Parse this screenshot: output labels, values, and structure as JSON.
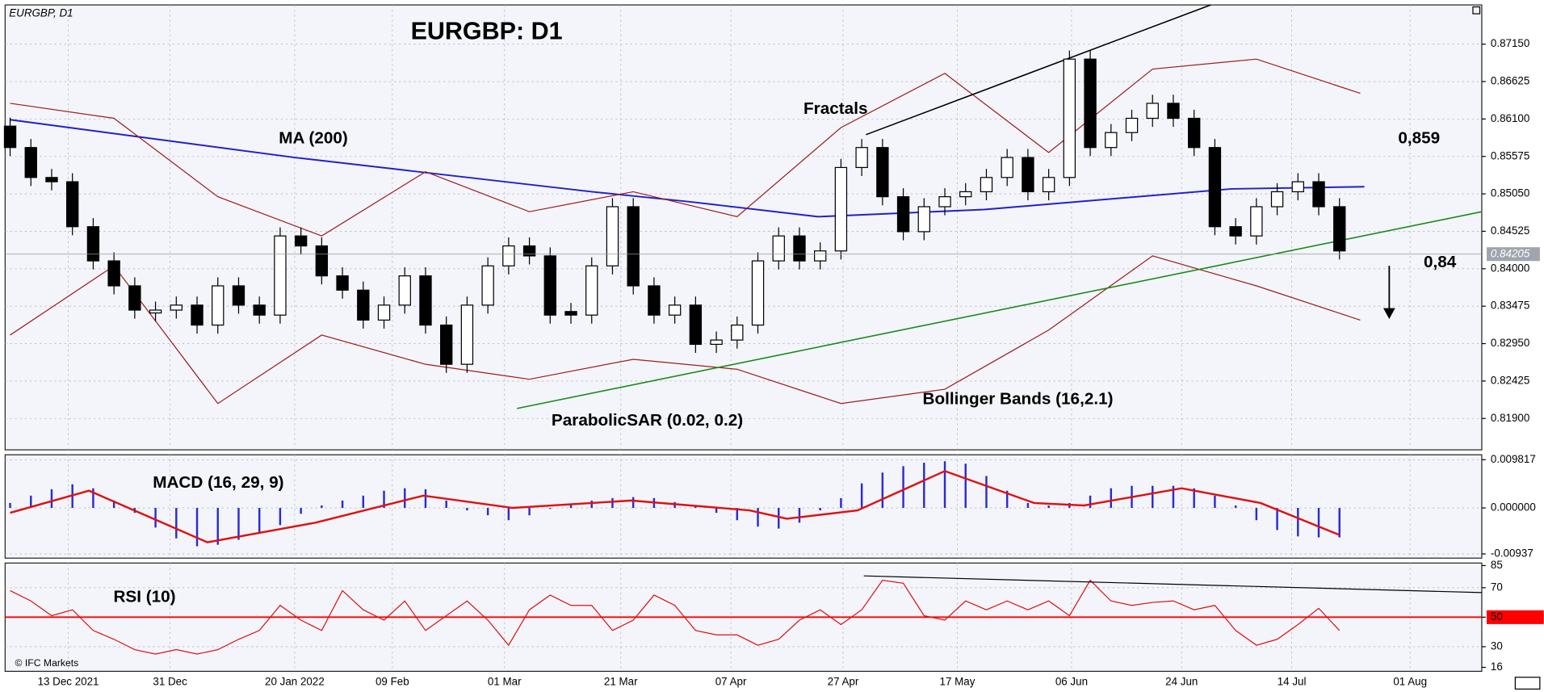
{
  "chart_data": [
    {
      "type": "candlestick",
      "title": "EURGBP: D1",
      "label": "EURGBP, D1",
      "footer": "© IFC Markets",
      "open": [
        0.86,
        0.857,
        0.8528,
        0.8522,
        0.8459,
        0.8411,
        0.8376,
        0.8338,
        0.8342,
        0.8349,
        0.8321,
        0.8376,
        0.8349,
        0.8335,
        0.8446,
        0.8432,
        0.839,
        0.837,
        0.8328,
        0.8349,
        0.839,
        0.8321,
        0.8266,
        0.8349,
        0.8404,
        0.8432,
        0.8418,
        0.834,
        0.8335,
        0.8404,
        0.8487,
        0.8376,
        0.8335,
        0.8349,
        0.8294,
        0.83,
        0.8321,
        0.8411,
        0.8446,
        0.8411,
        0.8425,
        0.8542,
        0.857,
        0.8501,
        0.8452,
        0.8487,
        0.8501,
        0.8508,
        0.8528,
        0.8556,
        0.8508,
        0.8528,
        0.8694,
        0.857,
        0.8591,
        0.8611,
        0.8632,
        0.8611,
        0.857,
        0.8459,
        0.8446,
        0.8487,
        0.8508,
        0.8522,
        0.8487
      ],
      "high": [
        0.8612,
        0.8582,
        0.854,
        0.8534,
        0.8471,
        0.8423,
        0.8388,
        0.8354,
        0.8361,
        0.8361,
        0.8388,
        0.8388,
        0.8361,
        0.8458,
        0.8458,
        0.8444,
        0.8402,
        0.8382,
        0.8361,
        0.8402,
        0.8402,
        0.8333,
        0.8361,
        0.8416,
        0.8444,
        0.8444,
        0.843,
        0.8352,
        0.8416,
        0.8499,
        0.8499,
        0.8388,
        0.8361,
        0.8361,
        0.8312,
        0.8333,
        0.8423,
        0.8458,
        0.8458,
        0.8437,
        0.8554,
        0.8582,
        0.8582,
        0.8513,
        0.8499,
        0.8513,
        0.852,
        0.854,
        0.8568,
        0.8568,
        0.854,
        0.8706,
        0.8706,
        0.8603,
        0.8623,
        0.8644,
        0.8644,
        0.8623,
        0.8582,
        0.8471,
        0.8499,
        0.852,
        0.8534,
        0.8534,
        0.8499
      ],
      "low": [
        0.8558,
        0.8516,
        0.851,
        0.8447,
        0.8399,
        0.8364,
        0.833,
        0.8326,
        0.833,
        0.8309,
        0.8309,
        0.8337,
        0.8323,
        0.8323,
        0.842,
        0.8378,
        0.8358,
        0.8316,
        0.8316,
        0.8337,
        0.8309,
        0.8254,
        0.8254,
        0.8337,
        0.8392,
        0.8406,
        0.8323,
        0.8323,
        0.8323,
        0.8392,
        0.8364,
        0.8323,
        0.8323,
        0.8282,
        0.8282,
        0.8288,
        0.8309,
        0.8399,
        0.8399,
        0.8399,
        0.8413,
        0.853,
        0.8489,
        0.844,
        0.844,
        0.8475,
        0.8489,
        0.8496,
        0.8516,
        0.8496,
        0.8496,
        0.8516,
        0.8558,
        0.8558,
        0.8579,
        0.8599,
        0.8599,
        0.8558,
        0.8447,
        0.8434,
        0.8434,
        0.8475,
        0.8496,
        0.8475,
        0.8413
      ],
      "close": [
        0.857,
        0.8528,
        0.8522,
        0.8459,
        0.8411,
        0.8376,
        0.8342,
        0.8342,
        0.8349,
        0.8321,
        0.8376,
        0.8349,
        0.8335,
        0.8446,
        0.8432,
        0.839,
        0.837,
        0.8328,
        0.8349,
        0.839,
        0.8321,
        0.8266,
        0.8349,
        0.8404,
        0.8432,
        0.8418,
        0.8335,
        0.8335,
        0.8404,
        0.8487,
        0.8376,
        0.8335,
        0.8349,
        0.8294,
        0.83,
        0.8321,
        0.8411,
        0.8446,
        0.8411,
        0.8425,
        0.8542,
        0.857,
        0.8501,
        0.8452,
        0.8487,
        0.8501,
        0.8508,
        0.8528,
        0.8556,
        0.8508,
        0.8528,
        0.8694,
        0.857,
        0.8591,
        0.8611,
        0.8632,
        0.8611,
        0.857,
        0.8459,
        0.8446,
        0.8487,
        0.8508,
        0.8522,
        0.8487,
        0.8425
      ],
      "up_color": "#ffffff",
      "down_color": "#000000",
      "series": [
        {
          "color": "#1f1fd0",
          "x": [
            0,
            13.7,
            28,
            32.7,
            38.9,
            46.9,
            58.8,
            65.2
          ],
          "values": [
            0.8609,
            0.8556,
            0.8508,
            0.8494,
            0.8473,
            0.8483,
            0.8512,
            0.8515
          ]
        },
        {
          "color": "#a01c1c",
          "x": [
            0,
            5,
            10,
            15,
            20,
            25,
            30,
            35,
            40,
            45,
            50,
            55,
            60,
            65
          ],
          "values": [
            0.8632,
            0.8611,
            0.8501,
            0.8446,
            0.8536,
            0.848,
            0.8508,
            0.8473,
            0.8598,
            0.8674,
            0.8563,
            0.868,
            0.8694,
            0.8646
          ]
        },
        {
          "color": "#a01c1c",
          "x": [
            0,
            5,
            10,
            15,
            20,
            25,
            30,
            35,
            40,
            45,
            50,
            55,
            60,
            65
          ],
          "values": [
            0.8307,
            0.8404,
            0.8211,
            0.8307,
            0.8266,
            0.8245,
            0.8273,
            0.8259,
            0.8211,
            0.8231,
            0.8314,
            0.8418,
            0.8376,
            0.8328
          ]
        }
      ],
      "trendlines": [
        {
          "color": "#1a8a1a",
          "x": [
            24.4,
            70.85
          ],
          "values": [
            0.8204,
            0.848
          ]
        },
        {
          "color": "#000000",
          "x": [
            41.2,
            57.8
          ],
          "values": [
            0.8588,
            0.877
          ]
        }
      ],
      "last": 0.84205,
      "annotations": [
        "MA (200)",
        "Fractals",
        "ParabolicSAR (0.02, 0.2)",
        "Bollinger Bands (16,2.1)",
        "0,859",
        "0,84"
      ],
      "xlim": [
        -0.24,
        70.85
      ],
      "xticks": [
        {
          "value": 2.8,
          "label": "13 Dec 2021"
        },
        {
          "value": 7.7,
          "label": "31 Dec"
        },
        {
          "value": 13.7,
          "label": "20 Jan 2022"
        },
        {
          "value": 18.4,
          "label": "09 Feb"
        },
        {
          "value": 23.8,
          "label": "01 Mar"
        },
        {
          "value": 29.4,
          "label": "21 Mar"
        },
        {
          "value": 34.7,
          "label": "07 Apr"
        },
        {
          "value": 40.1,
          "label": "27 Apr"
        },
        {
          "value": 45.6,
          "label": "17 May"
        },
        {
          "value": 51.1,
          "label": "06 Jun"
        },
        {
          "value": 56.4,
          "label": "24 Jun"
        },
        {
          "value": 61.7,
          "label": "14 Jul"
        },
        {
          "value": 67.4,
          "label": "01 Aug"
        }
      ],
      "ylim": [
        0.8146,
        0.877
      ],
      "yticks": [
        {
          "value": 0.8715,
          "label": "0.87150"
        },
        0.86625,
        {
          "value": 0.861,
          "label": "0.86100"
        },
        0.85575,
        {
          "value": 0.8505,
          "label": "0.85050"
        },
        0.84525,
        {
          "value": 0.84,
          "label": "0.84000"
        },
        0.83475,
        {
          "value": 0.8295,
          "label": "0.82950"
        },
        0.82425,
        {
          "value": 0.819,
          "label": "0.81900"
        }
      ]
    },
    {
      "type": "macd",
      "title": "MACD (16, 29, 9)",
      "color": "#2a2ad8",
      "values": [
        0.001,
        0.0025,
        0.0038,
        0.0048,
        0.004,
        0.0015,
        -0.001,
        -0.004,
        -0.0062,
        -0.0078,
        -0.0075,
        -0.0065,
        -0.005,
        -0.0035,
        -0.0012,
        0.0005,
        0.0015,
        0.0025,
        0.0035,
        0.004,
        0.0038,
        0.0015,
        -0.0005,
        -0.0015,
        -0.0025,
        -0.0015,
        -0.0002,
        0.0008,
        0.0015,
        0.002,
        0.0022,
        0.002,
        0.0012,
        0.0005,
        -0.001,
        -0.0025,
        -0.0038,
        -0.0042,
        -0.003,
        -0.0005,
        0.002,
        0.005,
        0.0072,
        0.0085,
        0.0092,
        0.0095,
        0.009,
        0.0065,
        0.0035,
        0.001,
        0.0005,
        0.001,
        0.0025,
        0.004,
        0.0045,
        0.0045,
        0.0045,
        0.004,
        0.0025,
        0.0005,
        -0.0025,
        -0.0045,
        -0.0058,
        -0.006,
        -0.006
      ],
      "signal": {
        "color": "#e01010",
        "x": [
          0,
          3.8,
          9.5,
          14.7,
          19.9,
          24.2,
          29.9,
          35.6,
          37.4,
          40.8,
          45,
          49.3,
          51.7,
          56.4,
          60.2,
          64
        ],
        "values": [
          -0.001,
          0.0035,
          -0.007,
          -0.003,
          0.0025,
          0,
          0.0015,
          -0.0005,
          -0.0022,
          -0.0005,
          0.0075,
          0.001,
          0.0005,
          0.004,
          0.001,
          -0.0055
        ]
      },
      "ylim": [
        -0.01022,
        0.010818
      ],
      "yticks": [
        0.009817,
        {
          "value": 0,
          "label": "0.000000"
        },
        -0.00937
      ]
    },
    {
      "type": "line",
      "title": "RSI (10)",
      "color": "#e01010",
      "values": [
        68,
        61,
        51,
        55,
        41,
        35,
        28,
        25,
        28,
        25,
        28,
        35,
        41,
        58,
        48,
        41,
        68,
        55,
        48,
        61,
        41,
        51,
        61,
        48,
        31,
        55,
        65,
        58,
        58,
        41,
        48,
        65,
        58,
        41,
        38,
        38,
        31,
        35,
        48,
        55,
        45,
        55,
        75,
        73,
        51,
        48,
        61,
        55,
        61,
        55,
        61,
        51,
        75,
        61,
        58,
        60,
        61,
        55,
        58,
        41,
        31,
        35,
        45,
        56,
        41
      ],
      "trendline": {
        "color": "#000000",
        "x": [
          41.1,
          70.85
        ],
        "values": [
          78,
          66.7
        ]
      },
      "level": 50,
      "level_color": "#ff0000",
      "ylim": [
        13.3,
        86.7
      ],
      "yticks": [
        16,
        30,
        50,
        70,
        85
      ]
    }
  ]
}
